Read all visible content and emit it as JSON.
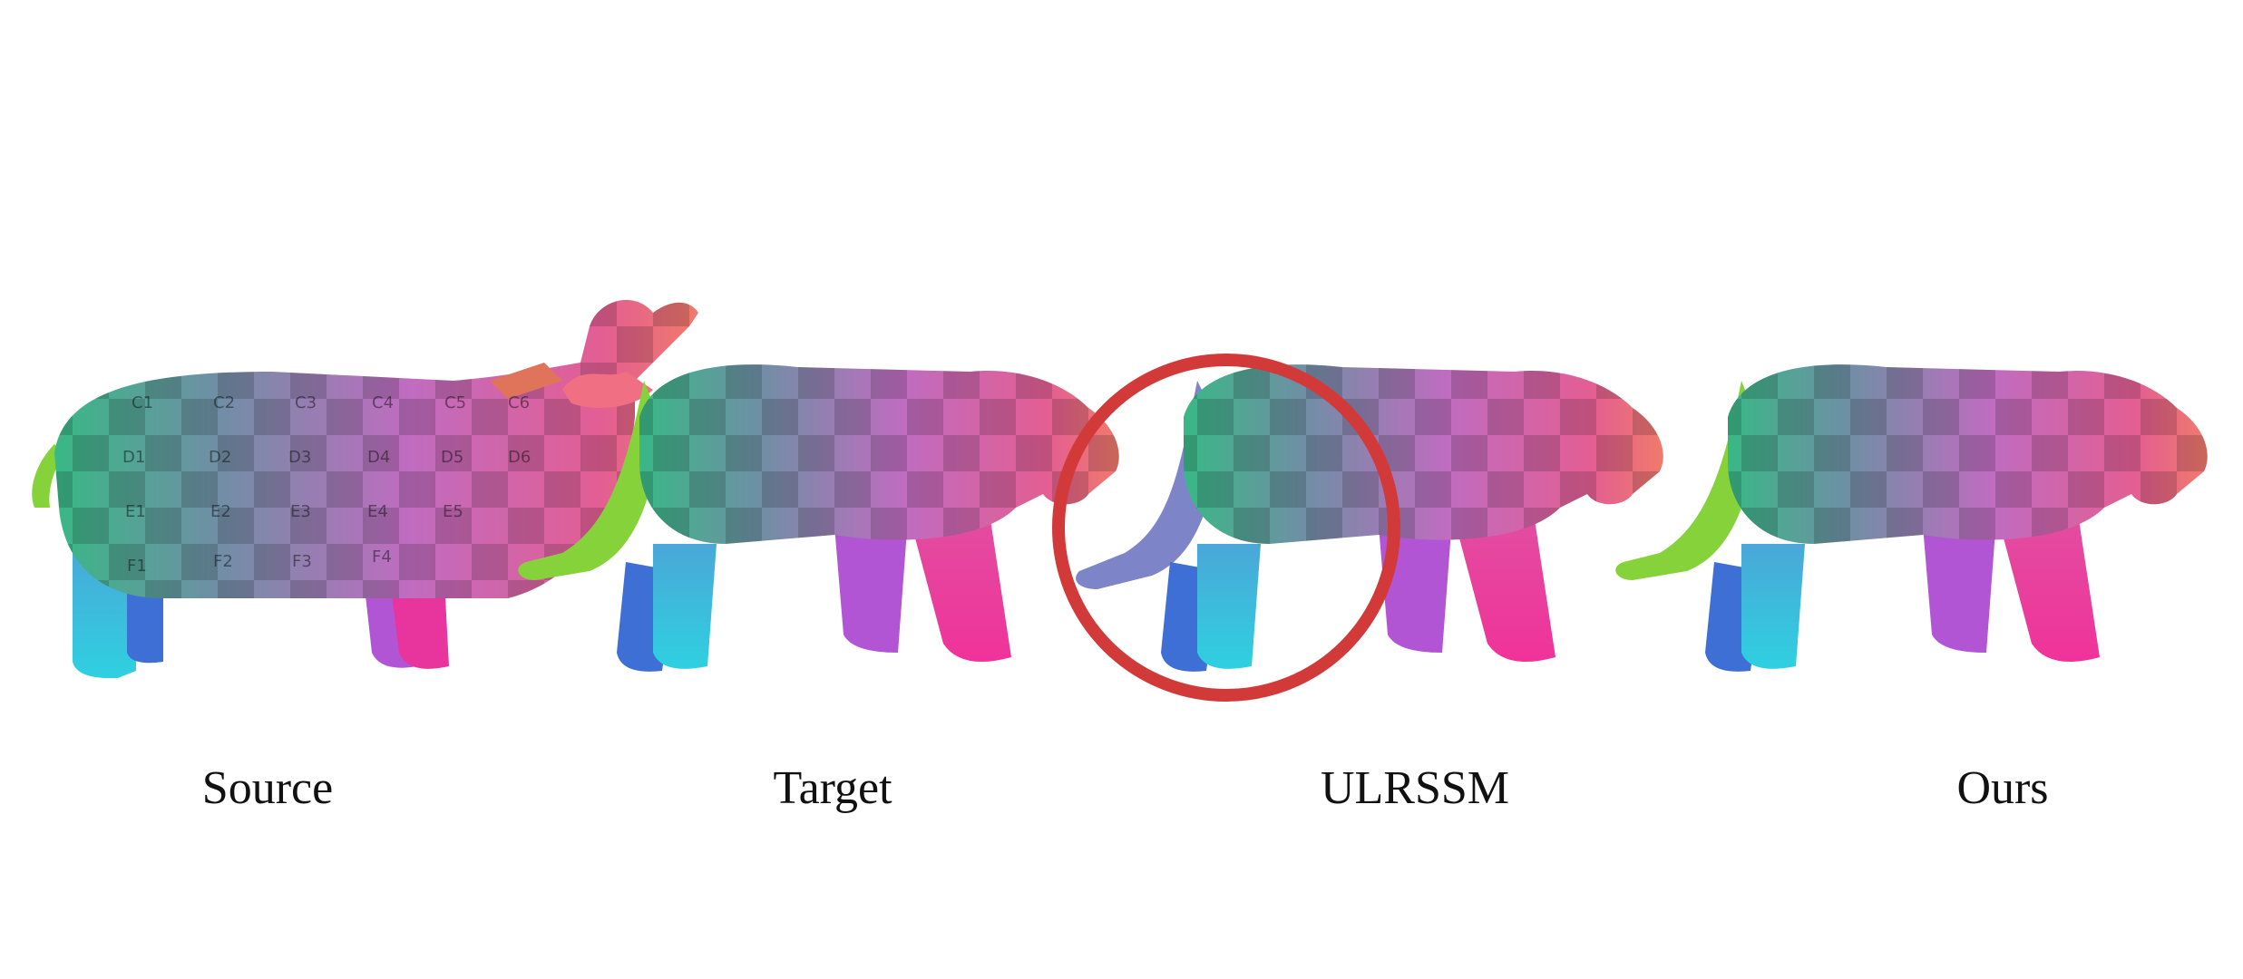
{
  "figure": {
    "panels": [
      {
        "id": "source",
        "caption": "Source",
        "shape": "hippo"
      },
      {
        "id": "target",
        "caption": "Target",
        "shape": "cat"
      },
      {
        "id": "ulrssm",
        "caption": "ULRSSM",
        "shape": "cat",
        "highlighted": true
      },
      {
        "id": "ours",
        "caption": "Ours",
        "shape": "cat"
      }
    ],
    "texture_labels": {
      "C": [
        "C1",
        "C2",
        "C3",
        "C4",
        "C5",
        "C6"
      ],
      "D": [
        "D1",
        "D2",
        "D3",
        "D4",
        "D5",
        "D6"
      ],
      "E": [
        "E1",
        "E2",
        "E3",
        "E4",
        "E5"
      ],
      "F": [
        "F1",
        "F2",
        "F3",
        "F4"
      ]
    },
    "highlight_color": "#d23a3a"
  }
}
